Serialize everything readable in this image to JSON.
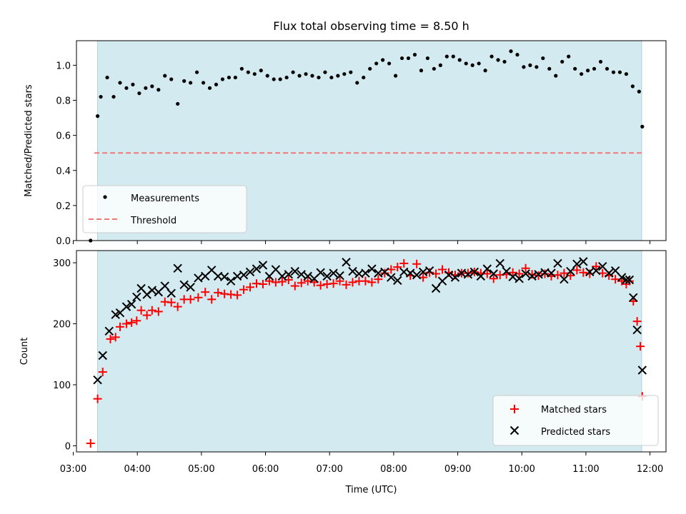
{
  "chart_data": [
    {
      "type": "scatter",
      "title": "Flux total observing time = 8.50 h",
      "ylabel": "Matched/Predicted stars",
      "ylim": [
        0,
        1.14
      ],
      "yticks": [
        "0.0",
        "0.2",
        "0.4",
        "0.6",
        "0.8",
        "1.0"
      ],
      "xlim_hours": [
        3.05,
        12.25
      ],
      "shaded_span_hours": [
        3.38,
        11.87
      ],
      "shade_color": "#d3eaf0",
      "legend": {
        "placement": "lower-left",
        "entries": [
          "Measurements",
          "Threshold"
        ]
      },
      "threshold": {
        "name": "Threshold",
        "value": 0.5,
        "x_hours": [
          3.33,
          11.87
        ],
        "color": "#f07878"
      },
      "series": [
        {
          "name": "Measurements",
          "color": "#000000",
          "x_hours": [
            3.27,
            3.38,
            3.43,
            3.53,
            3.63,
            3.73,
            3.83,
            3.93,
            4.03,
            4.13,
            4.23,
            4.33,
            4.43,
            4.53,
            4.63,
            4.73,
            4.83,
            4.93,
            5.03,
            5.13,
            5.23,
            5.33,
            5.43,
            5.53,
            5.63,
            5.73,
            5.83,
            5.93,
            6.03,
            6.13,
            6.23,
            6.33,
            6.43,
            6.53,
            6.63,
            6.73,
            6.83,
            6.93,
            7.03,
            7.13,
            7.23,
            7.33,
            7.43,
            7.53,
            7.63,
            7.73,
            7.83,
            7.93,
            8.03,
            8.13,
            8.23,
            8.33,
            8.43,
            8.53,
            8.63,
            8.73,
            8.83,
            8.93,
            9.03,
            9.13,
            9.23,
            9.33,
            9.43,
            9.53,
            9.63,
            9.73,
            9.83,
            9.93,
            10.03,
            10.13,
            10.23,
            10.33,
            10.43,
            10.53,
            10.63,
            10.73,
            10.83,
            10.93,
            11.03,
            11.13,
            11.23,
            11.33,
            11.43,
            11.53,
            11.63,
            11.73,
            11.83,
            11.88
          ],
          "values": [
            0.0,
            0.71,
            0.82,
            0.93,
            0.82,
            0.9,
            0.87,
            0.89,
            0.84,
            0.87,
            0.88,
            0.86,
            0.94,
            0.92,
            0.78,
            0.91,
            0.9,
            0.96,
            0.9,
            0.87,
            0.89,
            0.92,
            0.93,
            0.93,
            0.98,
            0.96,
            0.95,
            0.97,
            0.94,
            0.92,
            0.92,
            0.93,
            0.96,
            0.94,
            0.95,
            0.94,
            0.93,
            0.96,
            0.93,
            0.94,
            0.95,
            0.96,
            0.9,
            0.93,
            0.98,
            1.01,
            1.03,
            1.01,
            0.94,
            1.04,
            1.04,
            1.06,
            0.97,
            1.04,
            0.98,
            1.0,
            1.05,
            1.05,
            1.03,
            1.01,
            1.0,
            1.01,
            0.97,
            1.05,
            1.03,
            1.02,
            1.08,
            1.06,
            0.99,
            1.0,
            0.99,
            1.04,
            0.98,
            0.94,
            1.02,
            1.05,
            0.98,
            0.95,
            0.97,
            0.98,
            1.02,
            0.98,
            0.96,
            0.96,
            0.95,
            0.88,
            0.85,
            0.65
          ]
        }
      ]
    },
    {
      "type": "scatter",
      "xlabel": "Time (UTC)",
      "ylabel": "Count",
      "ylim": [
        -10,
        320
      ],
      "yticks": [
        "0",
        "100",
        "200",
        "300"
      ],
      "xticks": [
        "03:00",
        "04:00",
        "05:00",
        "06:00",
        "07:00",
        "08:00",
        "09:00",
        "10:00",
        "11:00",
        "12:00"
      ],
      "xlim_hours": [
        3.05,
        12.25
      ],
      "shaded_span_hours": [
        3.38,
        11.87
      ],
      "shade_color": "#d3eaf0",
      "legend": {
        "placement": "lower-right",
        "entries": [
          "Matched stars",
          "Predicted stars"
        ]
      },
      "series": [
        {
          "name": "Matched stars",
          "marker": "+",
          "color": "#ff0000",
          "x_hours": [
            3.27,
            3.38,
            3.46,
            3.58,
            3.66,
            3.73,
            3.83,
            3.91,
            3.99,
            4.06,
            4.15,
            4.23,
            4.33,
            4.43,
            4.53,
            4.63,
            4.73,
            4.83,
            4.95,
            5.06,
            5.16,
            5.26,
            5.36,
            5.46,
            5.56,
            5.66,
            5.76,
            5.86,
            5.96,
            6.06,
            6.16,
            6.26,
            6.36,
            6.46,
            6.56,
            6.66,
            6.76,
            6.86,
            6.96,
            7.06,
            7.16,
            7.26,
            7.36,
            7.46,
            7.56,
            7.66,
            7.76,
            7.86,
            7.96,
            8.06,
            8.16,
            8.26,
            8.36,
            8.46,
            8.56,
            8.66,
            8.76,
            8.86,
            8.96,
            9.06,
            9.16,
            9.26,
            9.36,
            9.46,
            9.56,
            9.66,
            9.76,
            9.86,
            9.96,
            10.06,
            10.16,
            10.26,
            10.36,
            10.46,
            10.56,
            10.66,
            10.76,
            10.86,
            10.96,
            11.06,
            11.16,
            11.26,
            11.36,
            11.46,
            11.56,
            11.63,
            11.68,
            11.74,
            11.8,
            11.85,
            11.88
          ],
          "values": [
            4,
            77,
            121,
            175,
            178,
            195,
            200,
            202,
            205,
            222,
            214,
            222,
            220,
            236,
            235,
            228,
            240,
            240,
            243,
            252,
            240,
            251,
            249,
            248,
            247,
            256,
            260,
            266,
            265,
            270,
            268,
            269,
            272,
            262,
            267,
            270,
            268,
            263,
            265,
            266,
            270,
            264,
            268,
            270,
            270,
            268,
            273,
            283,
            289,
            293,
            299,
            279,
            298,
            276,
            284,
            282,
            289,
            284,
            280,
            283,
            283,
            285,
            283,
            282,
            274,
            280,
            281,
            284,
            282,
            291,
            281,
            279,
            282,
            278,
            280,
            283,
            279,
            288,
            284,
            282,
            294,
            283,
            279,
            273,
            270,
            265,
            270,
            237,
            204,
            163,
            81
          ]
        },
        {
          "name": "Predicted stars",
          "marker": "x",
          "color": "#000000",
          "x_hours": [
            3.38,
            3.46,
            3.56,
            3.66,
            3.73,
            3.83,
            3.91,
            3.99,
            4.06,
            4.15,
            4.23,
            4.33,
            4.43,
            4.53,
            4.63,
            4.73,
            4.83,
            4.95,
            5.06,
            5.16,
            5.26,
            5.36,
            5.46,
            5.56,
            5.66,
            5.76,
            5.86,
            5.96,
            6.06,
            6.16,
            6.26,
            6.36,
            6.46,
            6.56,
            6.66,
            6.76,
            6.86,
            6.96,
            7.06,
            7.16,
            7.26,
            7.36,
            7.46,
            7.56,
            7.66,
            7.76,
            7.86,
            7.96,
            8.06,
            8.16,
            8.26,
            8.36,
            8.46,
            8.56,
            8.66,
            8.76,
            8.86,
            8.96,
            9.06,
            9.16,
            9.26,
            9.36,
            9.46,
            9.56,
            9.66,
            9.76,
            9.86,
            9.96,
            10.06,
            10.16,
            10.26,
            10.36,
            10.46,
            10.56,
            10.66,
            10.76,
            10.86,
            10.96,
            11.06,
            11.16,
            11.26,
            11.36,
            11.46,
            11.56,
            11.63,
            11.68,
            11.74,
            11.8,
            11.88
          ],
          "values": [
            108,
            148,
            188,
            215,
            218,
            228,
            232,
            244,
            258,
            248,
            255,
            252,
            262,
            250,
            291,
            264,
            260,
            275,
            278,
            288,
            278,
            277,
            270,
            278,
            280,
            285,
            290,
            296,
            278,
            289,
            278,
            281,
            286,
            281,
            278,
            274,
            284,
            278,
            283,
            279,
            301,
            286,
            282,
            283,
            290,
            283,
            285,
            276,
            271,
            285,
            283,
            280,
            285,
            287,
            258,
            270,
            280,
            276,
            283,
            281,
            285,
            278,
            290,
            282,
            299,
            286,
            277,
            274,
            282,
            278,
            281,
            284,
            283,
            299,
            273,
            286,
            298,
            302,
            285,
            287,
            294,
            283,
            287,
            276,
            272,
            272,
            243,
            190,
            124
          ]
        }
      ]
    }
  ]
}
